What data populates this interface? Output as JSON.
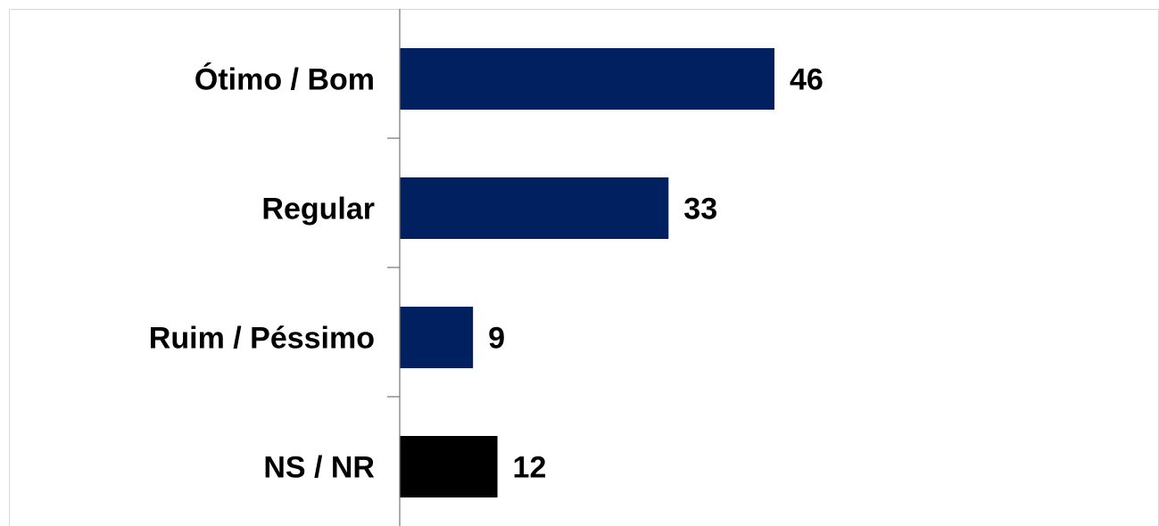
{
  "chart_data": {
    "type": "bar",
    "orientation": "horizontal",
    "categories": [
      "Ótimo / Bom",
      "Regular",
      "Ruim / Péssimo",
      "NS / NR"
    ],
    "values": [
      46,
      33,
      9,
      12
    ],
    "value_labels": [
      "46",
      "33",
      "9",
      "12"
    ],
    "bar_colors": [
      "#00205f",
      "#00205f",
      "#00205f",
      "#000000"
    ],
    "xlim": [
      0,
      100
    ],
    "grid": false,
    "legend": "none"
  }
}
